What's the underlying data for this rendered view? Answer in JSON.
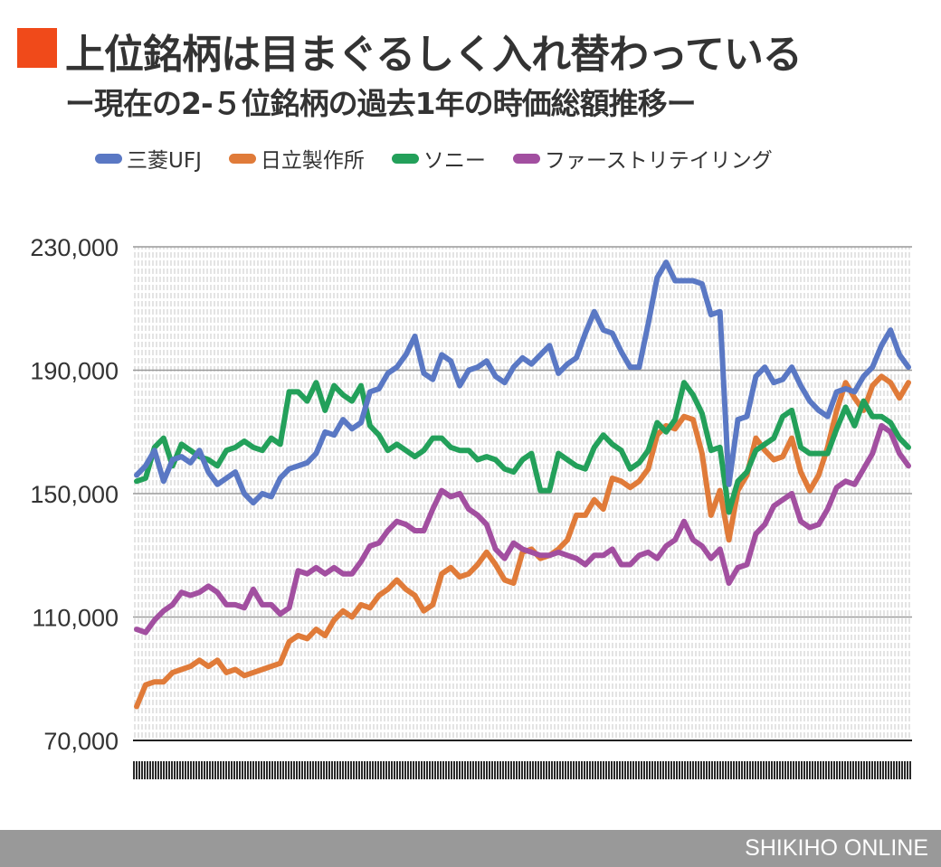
{
  "title": "上位銘柄は目まぐるしく入れ替わっている",
  "subtitle": "ー現在の2-５位銘柄の過去1年の時価総額推移ー",
  "title_mark_color": "#f04a1a",
  "footer": "SHIKIHO ONLINE",
  "chart_data": {
    "type": "line",
    "title": "上位銘柄は目まぐるしく入れ替わっている",
    "subtitle": "ー現在の2-５位銘柄の過去1年の時価総額推移ー",
    "legend_position": "top",
    "grid": true,
    "ylim": [
      70000,
      230000
    ],
    "y_ticks": [
      70000,
      110000,
      150000,
      190000,
      230000
    ],
    "y_tick_labels": [
      "70,000",
      "110,000",
      "150,000",
      "190,000",
      "230,000"
    ],
    "series": [
      {
        "name": "三菱UFJ",
        "color": "#5a78c4",
        "values": [
          156000,
          159000,
          164000,
          154000,
          161000,
          162000,
          160000,
          164000,
          157000,
          153000,
          155000,
          157000,
          150000,
          147000,
          150000,
          149000,
          155000,
          158000,
          159000,
          160000,
          163000,
          170000,
          169000,
          174000,
          171000,
          173000,
          183000,
          184000,
          189000,
          191000,
          195000,
          201000,
          189000,
          187000,
          195000,
          193000,
          185000,
          190000,
          191000,
          193000,
          188000,
          186000,
          191000,
          194000,
          192000,
          195000,
          198000,
          189000,
          192000,
          194000,
          202000,
          209000,
          203000,
          202000,
          196000,
          191000,
          191000,
          205000,
          220000,
          225000,
          219000,
          219000,
          219000,
          218000,
          208000,
          209000,
          153000,
          174000,
          175000,
          188000,
          191000,
          186000,
          187000,
          191000,
          185000,
          180000,
          177000,
          175000,
          183000,
          184000,
          183000,
          188000,
          191000,
          198000,
          203000,
          195000,
          191000
        ]
      },
      {
        "name": "日立製作所",
        "color": "#e07b39",
        "values": [
          81000,
          88000,
          89000,
          89000,
          92000,
          93000,
          94000,
          96000,
          94000,
          96000,
          92000,
          93000,
          91000,
          92000,
          93000,
          94000,
          95000,
          102000,
          104000,
          103000,
          106000,
          104000,
          109000,
          112000,
          110000,
          114000,
          113000,
          117000,
          119000,
          122000,
          119000,
          117000,
          112000,
          114000,
          124000,
          126000,
          123000,
          124000,
          127000,
          131000,
          127000,
          122000,
          121000,
          131000,
          132000,
          129000,
          130000,
          132000,
          135000,
          143000,
          143000,
          148000,
          145000,
          155000,
          154000,
          152000,
          154000,
          158000,
          169000,
          172000,
          171000,
          175000,
          174000,
          163000,
          143000,
          151000,
          135000,
          151000,
          156000,
          168000,
          164000,
          161000,
          162000,
          168000,
          157000,
          151000,
          156000,
          165000,
          177000,
          186000,
          181000,
          177000,
          185000,
          188000,
          186000,
          181000,
          186000
        ]
      },
      {
        "name": "ソニー",
        "color": "#23a05a",
        "values": [
          154000,
          155000,
          165000,
          168000,
          159000,
          166000,
          164000,
          162000,
          161000,
          159000,
          164000,
          165000,
          167000,
          165000,
          164000,
          168000,
          166000,
          183000,
          183000,
          180000,
          186000,
          177000,
          185000,
          182000,
          180000,
          185000,
          172000,
          169000,
          164000,
          166000,
          164000,
          162000,
          164000,
          168000,
          168000,
          165000,
          164000,
          164000,
          161000,
          162000,
          161000,
          158000,
          157000,
          161000,
          163000,
          151000,
          151000,
          163000,
          161000,
          159000,
          158000,
          165000,
          169000,
          166000,
          164000,
          158000,
          160000,
          164000,
          173000,
          170000,
          174000,
          186000,
          182000,
          176000,
          164000,
          165000,
          144000,
          154000,
          157000,
          164000,
          166000,
          168000,
          175000,
          177000,
          165000,
          163000,
          163000,
          163000,
          171000,
          178000,
          172000,
          180000,
          175000,
          175000,
          173000,
          168000,
          165000
        ]
      },
      {
        "name": "ファーストリテイリング",
        "color": "#a24fa0",
        "values": [
          106000,
          105000,
          109000,
          112000,
          114000,
          118000,
          117000,
          118000,
          120000,
          118000,
          114000,
          114000,
          113000,
          119000,
          114000,
          114000,
          111000,
          113000,
          125000,
          124000,
          126000,
          124000,
          126000,
          124000,
          124000,
          128000,
          133000,
          134000,
          138000,
          141000,
          140000,
          138000,
          138000,
          145000,
          151000,
          149000,
          150000,
          145000,
          143000,
          140000,
          132000,
          129000,
          134000,
          132000,
          131000,
          130000,
          130000,
          131000,
          130000,
          129000,
          127000,
          130000,
          130000,
          132000,
          127000,
          127000,
          130000,
          131000,
          129000,
          133000,
          135000,
          141000,
          135000,
          133000,
          129000,
          132000,
          121000,
          126000,
          127000,
          137000,
          140000,
          146000,
          148000,
          150000,
          141000,
          139000,
          140000,
          145000,
          152000,
          154000,
          153000,
          158000,
          163000,
          172000,
          170000,
          163000,
          159000
        ]
      }
    ]
  }
}
